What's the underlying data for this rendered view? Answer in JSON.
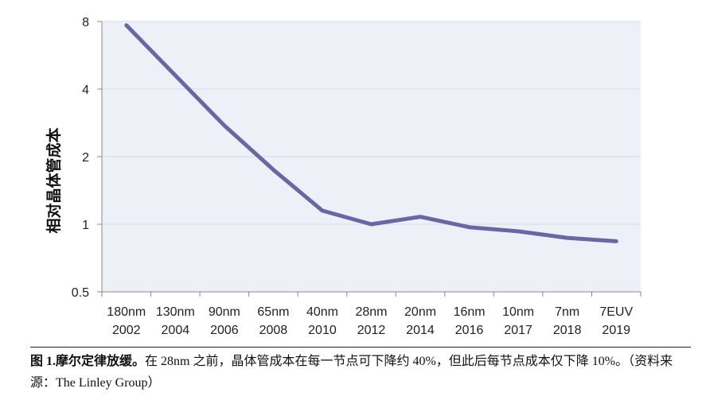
{
  "chart_data": {
    "type": "line",
    "ylabel": "相对晶体管成本",
    "xlabel": "",
    "y_scale": "log2",
    "ylim": [
      0.5,
      8
    ],
    "yticks": [
      "8",
      "4",
      "2",
      "1",
      "0.5"
    ],
    "yticks_values": [
      8,
      4,
      2,
      1,
      0.5
    ],
    "categories": [
      {
        "node": "180nm",
        "year": "2002"
      },
      {
        "node": "130nm",
        "year": "2004"
      },
      {
        "node": "90nm",
        "year": "2006"
      },
      {
        "node": "65nm",
        "year": "2008"
      },
      {
        "node": "40nm",
        "year": "2010"
      },
      {
        "node": "28nm",
        "year": "2012"
      },
      {
        "node": "20nm",
        "year": "2014"
      },
      {
        "node": "16nm",
        "year": "2016"
      },
      {
        "node": "10nm",
        "year": "2017"
      },
      {
        "node": "7nm",
        "year": "2018"
      },
      {
        "node": "7EUV",
        "year": "2019"
      }
    ],
    "series": [
      {
        "values": [
          7.7,
          4.6,
          2.75,
          1.75,
          1.15,
          1.0,
          1.08,
          0.97,
          0.93,
          0.87,
          0.84
        ]
      }
    ],
    "grid": true,
    "colors": {
      "line": "#6a66a3",
      "plot_bg": "#eef0f8",
      "grid": "#d7dbe8"
    }
  },
  "caption": {
    "label": "图 1.摩尔定律放缓。",
    "text": "在 28nm 之前，晶体管成本在每一节点可下降约 40%，但此后每节点成本仅下降 10%。（资料来源：The Linley Group）"
  }
}
